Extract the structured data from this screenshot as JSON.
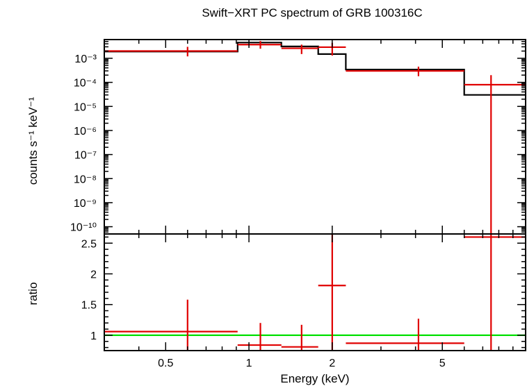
{
  "chart_data": [
    {
      "type": "line",
      "title": "Swift−XRT PC spectrum of GRB 100316C",
      "xlabel": "",
      "ylabel": "counts s⁻¹ keV⁻¹",
      "xscale": "log",
      "yscale": "log",
      "xlim": [
        0.3,
        10
      ],
      "ylim": [
        5e-11,
        0.006
      ],
      "y_ticks": [
        {
          "label": "10⁻³",
          "value": 0.001
        },
        {
          "label": "10⁻⁴",
          "value": 0.0001
        },
        {
          "label": "10⁻⁵",
          "value": 1e-05
        },
        {
          "label": "10⁻⁶",
          "value": 1e-06
        },
        {
          "label": "10⁻⁷",
          "value": 1e-07
        },
        {
          "label": "10⁻⁸",
          "value": 1e-08
        },
        {
          "label": "10⁻⁹",
          "value": 1e-09
        },
        {
          "label": "10⁻¹⁰",
          "value": 1e-10
        }
      ],
      "series": [
        {
          "color": "#e00000",
          "style": "errorbars",
          "points": [
            {
              "x": 0.6,
              "xlo": 0.3,
              "xhi": 0.91,
              "y": 0.002,
              "ylo": 0.0012,
              "yhi": 0.003
            },
            {
              "x": 1.1,
              "xlo": 0.91,
              "xhi": 1.31,
              "y": 0.0037,
              "ylo": 0.0025,
              "yhi": 0.0052
            },
            {
              "x": 1.55,
              "xlo": 1.31,
              "xhi": 1.78,
              "y": 0.0026,
              "ylo": 0.0015,
              "yhi": 0.0037
            },
            {
              "x": 2.0,
              "xlo": 1.78,
              "xhi": 2.24,
              "y": 0.0029,
              "ylo": 0.0013,
              "yhi": 0.0044
            },
            {
              "x": 4.1,
              "xlo": 2.24,
              "xhi": 6.0,
              "y": 0.0003,
              "ylo": 0.00018,
              "yhi": 0.00045
            },
            {
              "x": 7.5,
              "xlo": 6.0,
              "xhi": 10.0,
              "y": 8e-05,
              "ylo": 5e-11,
              "yhi": 0.0002
            }
          ]
        },
        {
          "color": "#000000",
          "style": "steps",
          "edges": [
            0.3,
            0.91,
            1.31,
            1.78,
            2.24,
            6.0,
            10.0
          ],
          "values": [
            0.0019,
            0.0045,
            0.0031,
            0.0015,
            0.00034,
            3e-05
          ]
        }
      ]
    },
    {
      "type": "line",
      "title": "",
      "xlabel": "Energy (keV)",
      "ylabel": "ratio",
      "xscale": "log",
      "xlim": [
        0.3,
        10
      ],
      "ylim": [
        0.75,
        2.65
      ],
      "x_ticks": [
        {
          "label": "0.5",
          "value": 0.5
        },
        {
          "label": "1",
          "value": 1
        },
        {
          "label": "2",
          "value": 2
        },
        {
          "label": "5",
          "value": 5
        }
      ],
      "y_ticks": [
        {
          "label": "1",
          "value": 1
        },
        {
          "label": "1.5",
          "value": 1.5
        },
        {
          "label": "2",
          "value": 2
        },
        {
          "label": "2.5",
          "value": 2.5
        }
      ],
      "reference_line": {
        "y": 1,
        "color": "#00e000"
      },
      "series": [
        {
          "color": "#e00000",
          "style": "errorbars",
          "points": [
            {
              "x": 0.6,
              "xlo": 0.3,
              "xhi": 0.91,
              "y": 1.06,
              "ylo": 0.75,
              "yhi": 1.58
            },
            {
              "x": 1.1,
              "xlo": 0.91,
              "xhi": 1.31,
              "y": 0.84,
              "ylo": 0.75,
              "yhi": 1.2
            },
            {
              "x": 1.55,
              "xlo": 1.31,
              "xhi": 1.78,
              "y": 0.81,
              "ylo": 0.75,
              "yhi": 1.17
            },
            {
              "x": 2.0,
              "xlo": 1.78,
              "xhi": 2.24,
              "y": 1.81,
              "ylo": 0.75,
              "yhi": 2.65
            },
            {
              "x": 4.1,
              "xlo": 2.24,
              "xhi": 6.0,
              "y": 0.87,
              "ylo": 0.75,
              "yhi": 1.27
            },
            {
              "x": 7.5,
              "xlo": 6.0,
              "xhi": 10.0,
              "y": 2.6,
              "ylo": 0.75,
              "yhi": 2.65
            }
          ]
        }
      ]
    }
  ]
}
